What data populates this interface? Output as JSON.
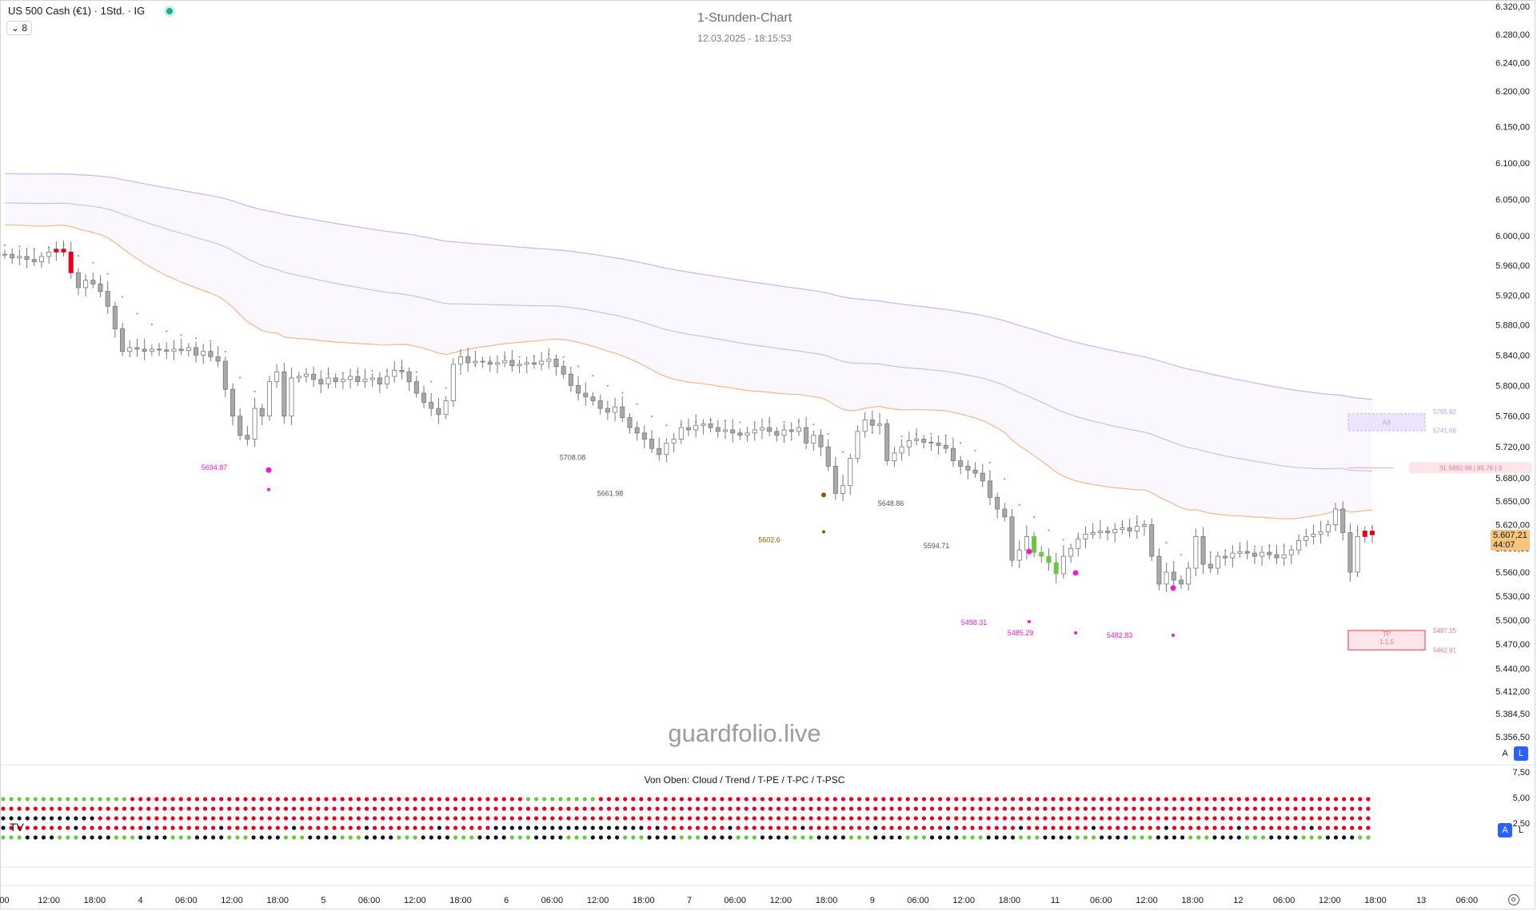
{
  "header": {
    "symbol": "US 500 Cash (€1) · 1Std. · IG",
    "collapse_label": "8",
    "chart_title": "1-Stunden-Chart",
    "timestamp": "12.03.2025 - 18:15:53"
  },
  "watermark": "guardfolio.live",
  "indicator_label": "Von Oben: Cloud / Trend / T-PE / T-PC / T-PSC",
  "current_price": {
    "price": "5.607,21",
    "countdown": "44:07"
  },
  "axis_buttons": {
    "auto": "A",
    "log": "L"
  },
  "colors": {
    "up": "#d1d4dc",
    "down": "#a9a9a9",
    "red": "#e8001c",
    "green": "#6cc644",
    "brown": "#9c5b3a",
    "magenta": "#e91ec9",
    "cloud_orange": "#f7b58a",
    "cloud_blue": "#b9c8f0",
    "cloud_violet": "#c8b6ee",
    "axis_text": "#131722"
  },
  "chart_data": {
    "type": "candlestick",
    "title": "1-Stunden-Chart",
    "price_axis": {
      "ticks": [
        6320,
        6280,
        6240,
        6200,
        6150,
        6100,
        6050,
        6000,
        5960,
        5920,
        5880,
        5840,
        5800,
        5760,
        5720,
        5680,
        5650,
        5620,
        5590,
        5560,
        5530,
        5500,
        5470,
        5440,
        5412,
        5384.5,
        5356.5
      ],
      "tick_labels": [
        "6.320,00",
        "6.280,00",
        "6.240,00",
        "6.200,00",
        "6.150,00",
        "6.100,00",
        "6.050,00",
        "6.000,00",
        "5.960,00",
        "5.920,00",
        "5.880,00",
        "5.840,00",
        "5.800,00",
        "5.760,00",
        "5.720,00",
        "5.680,00",
        "5.650,00",
        "5.620,00",
        "5.590,00",
        "5.560,00",
        "5.530,00",
        "5.500,00",
        "5.470,00",
        "5.440,00",
        "5.412,00",
        "5.384,50",
        "5.356,50"
      ],
      "scale": "logarithmic"
    },
    "time_axis_labels": [
      ":00",
      "12:00",
      "18:00",
      "4",
      "06:00",
      "12:00",
      "18:00",
      "5",
      "06:00",
      "12:00",
      "18:00",
      "6",
      "06:00",
      "12:00",
      "18:00",
      "7",
      "06:00",
      "12:00",
      "18:00",
      "9",
      "06:00",
      "12:00",
      "18:00",
      "11",
      "06:00",
      "12:00",
      "18:00",
      "12",
      "06:00",
      "12:00",
      "18:00",
      "13",
      "06:00"
    ],
    "close_series_approx": [
      5975,
      5970,
      5972,
      5968,
      5965,
      5972,
      5978,
      5982,
      5978,
      5950,
      5930,
      5940,
      5935,
      5925,
      5905,
      5875,
      5845,
      5850,
      5848,
      5845,
      5848,
      5847,
      5845,
      5848,
      5846,
      5850,
      5840,
      5845,
      5838,
      5832,
      5795,
      5760,
      5735,
      5730,
      5770,
      5760,
      5805,
      5818,
      5760,
      5810,
      5812,
      5815,
      5808,
      5802,
      5810,
      5805,
      5808,
      5812,
      5805,
      5808,
      5810,
      5802,
      5812,
      5820,
      5818,
      5805,
      5790,
      5778,
      5770,
      5762,
      5780,
      5828,
      5838,
      5830,
      5832,
      5831,
      5828,
      5830,
      5833,
      5826,
      5828,
      5830,
      5828,
      5832,
      5835,
      5825,
      5815,
      5800,
      5790,
      5785,
      5780,
      5770,
      5765,
      5772,
      5758,
      5745,
      5738,
      5730,
      5718,
      5710,
      5725,
      5730,
      5745,
      5742,
      5748,
      5750,
      5745,
      5740,
      5742,
      5738,
      5735,
      5738,
      5742,
      5745,
      5740,
      5735,
      5742,
      5740,
      5745,
      5725,
      5735,
      5720,
      5695,
      5660,
      5670,
      5705,
      5740,
      5755,
      5748,
      5750,
      5702,
      5712,
      5720,
      5728,
      5730,
      5726,
      5725,
      5722,
      5718,
      5702,
      5695,
      5690,
      5686,
      5676,
      5655,
      5640,
      5630,
      5575,
      5588,
      5605,
      5585,
      5580,
      5572,
      5558,
      5580,
      5590,
      5602,
      5608,
      5610,
      5612,
      5610,
      5614,
      5616,
      5612,
      5618,
      5620,
      5580,
      5545,
      5560,
      5550,
      5545,
      5565,
      5605,
      5570,
      5565,
      5580,
      5578,
      5584,
      5586,
      5584,
      5580,
      5585,
      5582,
      5578,
      5582,
      5588,
      5600,
      5605,
      5608,
      5611,
      5620,
      5640,
      5610,
      5560,
      5605,
      5612,
      5607.21
    ],
    "annotations": [
      "5694.87",
      "5708.08",
      "5661.98",
      "5602.6",
      "5648.86",
      "5594.71",
      "5498.31",
      "5485.29",
      "5482.83"
    ],
    "position_box": {
      "entry_label": "SL 5692.99 | 85.78 | 3",
      "tp_label": "TP",
      "ratio_label": "1:1.5",
      "tp_price_1": "5487.15",
      "tp_price_2": "5462.91",
      "stop_label": "AB",
      "stop_price_1": "5765.92",
      "stop_price_2": "5741.68"
    },
    "indicator_axis": {
      "ticks": [
        "7,50",
        "5,00",
        "2,50"
      ]
    },
    "grid": false,
    "legend": "none"
  }
}
